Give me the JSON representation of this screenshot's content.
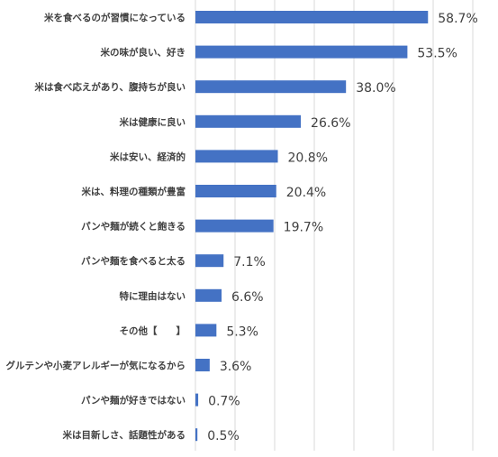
{
  "chart_data": {
    "type": "bar",
    "orientation": "horizontal",
    "categories": [
      "米を食べるのが習慣になっている",
      "米の味が良い、好き",
      "米は食べ応えがあり、腹持ちが良い",
      "米は健康に良い",
      "米は安い、経済的",
      "米は、料理の種類が豊富",
      "パンや麺が続くと飽きる",
      "パンや麺を食べると太る",
      "特に理由はない",
      "その他【　　】",
      "グルテンや小麦アレルギーが気になるから",
      "パンや麺が好きではない",
      "米は目新しさ、話題性がある"
    ],
    "values": [
      58.7,
      53.5,
      38.0,
      26.6,
      20.8,
      20.4,
      19.7,
      7.1,
      6.6,
      5.3,
      3.6,
      0.7,
      0.5
    ],
    "value_labels": [
      "58.7%",
      "53.5%",
      "38.0%",
      "26.6%",
      "20.8%",
      "20.4%",
      "19.7%",
      "7.1%",
      "6.6%",
      "5.3%",
      "3.6%",
      "0.7%",
      "0.5%"
    ],
    "xlim": [
      0,
      70
    ],
    "grid": true,
    "bar_color": "#4472c4",
    "title": "",
    "xlabel": "",
    "ylabel": ""
  }
}
